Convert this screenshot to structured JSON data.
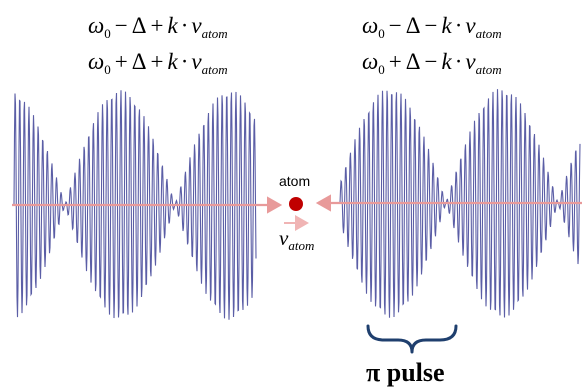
{
  "formulas": {
    "left_top": {
      "omega": "ω",
      "omega_sub": "0",
      "op1": "−",
      "delta": "Δ",
      "op2": "+",
      "k": "k",
      "dot": "·",
      "v": "v",
      "v_sub": "atom"
    },
    "left_bottom": {
      "omega": "ω",
      "omega_sub": "0",
      "op1": "+",
      "delta": "Δ",
      "op2": "+",
      "k": "k",
      "dot": "·",
      "v": "v",
      "v_sub": "atom"
    },
    "right_top": {
      "omega": "ω",
      "omega_sub": "0",
      "op1": "−",
      "delta": "Δ",
      "op2": "−",
      "k": "k",
      "dot": "·",
      "v": "v",
      "v_sub": "atom"
    },
    "right_bottom": {
      "omega": "ω",
      "omega_sub": "0",
      "op1": "+",
      "delta": "Δ",
      "op2": "−",
      "k": "k",
      "dot": "·",
      "v": "v",
      "v_sub": "atom"
    }
  },
  "atom": {
    "label": "atom",
    "velocity_symbol": "v",
    "velocity_sub": "atom",
    "dot_color": "#c00000"
  },
  "pulse": {
    "label": "π pulse",
    "brace_color": "#1f3f6e"
  },
  "colors": {
    "wave": "#5b5ea6",
    "beam": "#e89a9a",
    "velocity_arrow": "#f0b4b4"
  }
}
